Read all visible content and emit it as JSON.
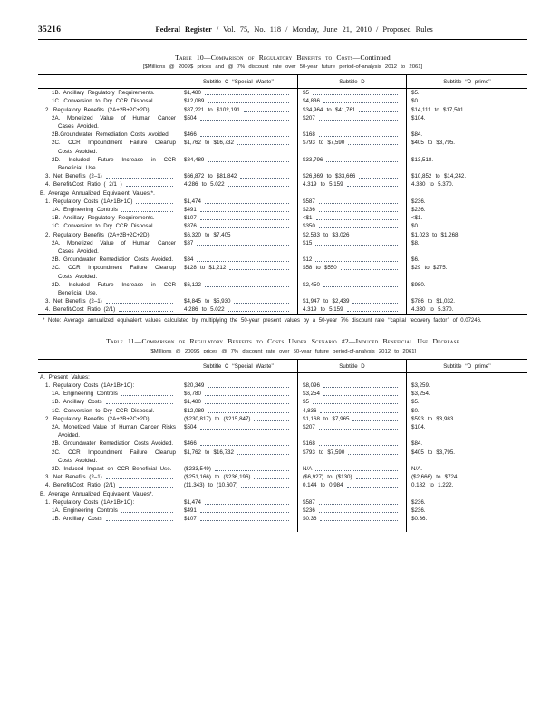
{
  "page": {
    "number": "35216",
    "journal": "Federal Register",
    "header_rest": "/ Vol. 75, No. 118 / Monday, June 21, 2010 / Proposed Rules"
  },
  "table10": {
    "title_main": "Table 10—Comparison of Regulatory Benefits to Costs",
    "title_suffix": "—Continued",
    "subtitle": "[$Millions @ 2009$ prices and @ 7% discount rate over 50-year future period-of-analysis 2012 to 2061]",
    "columns": {
      "c": "Subtitle C ‘‘Special Waste’’",
      "d": "Subtitle D",
      "dp": "Subtitle ‘‘D prime’’"
    },
    "rows": [
      {
        "label": "1B. Ancillary Regulatory Re­quirements.",
        "indent": 2,
        "c": "$1,480",
        "d": "$5",
        "dp": "$5."
      },
      {
        "label": "1C. Conversion to Dry CCR Dis­posal.",
        "indent": 2,
        "c": "$12,089",
        "d": "$4,836",
        "dp": "$0."
      },
      {
        "label": "2. Regulatory Benefits (2A+2B+2C+2D):",
        "indent": 1,
        "c": "$87,221 to $102,191",
        "d": "$34,964 to $41,761",
        "dp": "$14,111 to $17,501."
      },
      {
        "label": "2A. Monetized Value of Human Cancer Cases Avoided.",
        "indent": 2,
        "c": "$504",
        "d": "$207",
        "dp": "$104."
      },
      {
        "label": "2B.Groundwater Remediation Costs Avoided.",
        "indent": 2,
        "c": "$466",
        "d": "$168",
        "dp": "$84."
      },
      {
        "label": "2C. CCR Impoundment Failure Cleanup Costs Avoided.",
        "indent": 2,
        "c": "$1,762 to $16,732",
        "d": "$793 to $7,590",
        "dp": "$405 to $3,795."
      },
      {
        "label": "2D. Included Future Increase in CCR Beneficial Use.",
        "indent": 2,
        "c": "$84,489",
        "d": "$33,796",
        "dp": "$13,518."
      },
      {
        "label": "3. Net Benefits (2–1)",
        "indent": 1,
        "leader": true,
        "c": "$66,872 to $81,842",
        "d": "$26,869 to $33,666",
        "dp": "$10,852 to $14,242."
      },
      {
        "label": "4. Benefit/Cost Ratio ( 2/1 )",
        "indent": 1,
        "leader": true,
        "c": "4.286 to 5.022",
        "d": "4.319 to 5.159",
        "dp": "4.330 to 5.370."
      },
      {
        "label": "B. Average Annualized Equivalent Val­ues:*.",
        "indent": 0,
        "c": "",
        "d": "",
        "dp": ""
      },
      {
        "label": "1. Regulatory Costs (1A+1B+1C)",
        "indent": 1,
        "leader": true,
        "c": "$1,474",
        "d": "$587",
        "dp": "$236."
      },
      {
        "label": "1A. Engineering Controls",
        "indent": 2,
        "leader": true,
        "c": "$491",
        "d": "$236",
        "dp": "$236."
      },
      {
        "label": "1B. Ancillary Regulatory Re­quirements.",
        "indent": 2,
        "c": "$107",
        "d": "<$1",
        "dp": "<$1."
      },
      {
        "label": "1C. Conversion to Dry CCR Dis­posal.",
        "indent": 2,
        "c": "$876",
        "d": "$350",
        "dp": "$0."
      },
      {
        "label": "2. Regulatory Benefits (2A+2B+2C+2D):",
        "indent": 1,
        "c": "$6,320 to $7,405",
        "d": "$2,533 to $3,026",
        "dp": "$1,023 to $1,268."
      },
      {
        "label": "2A. Monetized Value of Human Cancer Cases Avoided.",
        "indent": 2,
        "c": "$37",
        "d": "$15",
        "dp": "$8."
      },
      {
        "label": "2B. Groundwater Remediation Costs Avoided.",
        "indent": 2,
        "c": "$34",
        "d": "$12",
        "dp": "$6."
      },
      {
        "label": "2C. CCR Impoundment Failure Cleanup Costs Avoided.",
        "indent": 2,
        "c": "$128 to $1,212",
        "d": "$58 to $550",
        "dp": "$29 to $275."
      },
      {
        "label": "2D. Included Future Increase in CCR Beneficial Use.",
        "indent": 2,
        "c": "$6,122",
        "d": "$2,450",
        "dp": "$980."
      },
      {
        "label": "3. Net Benefits (2–1)",
        "indent": 1,
        "leader": true,
        "c": "$4,845 to $5,930",
        "d": "$1,947 to $2,439",
        "dp": "$786 to $1,032."
      },
      {
        "label": "4. Benefit/Cost Ratio (2/1)",
        "indent": 1,
        "leader": true,
        "c": "4.286 to 5.022",
        "d": "4.319 to 5.159",
        "dp": "4.330 to 5.370."
      }
    ],
    "footnote": "* Note: Average annualized equivalent values calculated by multiplying the 50-year present values by a 50-year 7% discount rate ‘‘capital recovery factor’’ of 0.07246."
  },
  "table11": {
    "title_main": "Table 11—Comparison of Regulatory Benefits to Costs Under Scenario #2—Induced Beneficial Use Decrease",
    "title_suffix": "",
    "subtitle": "[$Millions @ 2009$ prices @ 7% discount rate over 50-year future period-of-analysis 2012 to 2061]",
    "columns": {
      "c": "Subtitle C ‘‘Special Waste’’",
      "d": "Subtitle D",
      "dp": "Subtitle ‘‘D prime’’"
    },
    "rows": [
      {
        "label": "A. Present Values:",
        "indent": 0,
        "c": "",
        "d": "",
        "dp": ""
      },
      {
        "label": "1. Regulatory Costs (1A+1B+1C):",
        "indent": 1,
        "c": "$20,349",
        "d": "$8,096",
        "dp": "$3,259."
      },
      {
        "label": "1A. Engineering Controls",
        "indent": 2,
        "leader": true,
        "c": "$6,780",
        "d": "$3,254",
        "dp": "$3,254."
      },
      {
        "label": "1B. Ancillary Costs",
        "indent": 2,
        "leader": true,
        "c": "$1,480",
        "d": "$5",
        "dp": "$5."
      },
      {
        "label": "1C. Conversion to Dry CCR Dis­posal.",
        "indent": 2,
        "c": "$12,089",
        "d": "4,836",
        "dp": "$0."
      },
      {
        "label": "2. Regulatory Benefits (2A+2B+2C+2D):",
        "indent": 1,
        "c": "($230,817) to ($215,847)",
        "d": "$1,168 to $7,965",
        "dp": "$593 to $3,983."
      },
      {
        "label": "2A. Monetized Value of Human Cancer Risks Avoided.",
        "indent": 2,
        "c": "$504",
        "d": "$207",
        "dp": "$104."
      },
      {
        "label": "2B. Groundwater Remediation Costs Avoided.",
        "indent": 2,
        "c": "$466",
        "d": "$168",
        "dp": "$84."
      },
      {
        "label": "2C. CCR Impoundment Failure Cleanup Costs Avoided.",
        "indent": 2,
        "c": "$1,762 to $16,732",
        "d": "$793 to $7,590",
        "dp": "$405 to $3,795."
      },
      {
        "label": "2D. Induced Impact on CCR Beneficial Use.",
        "indent": 2,
        "c": "($233,549)",
        "d": "N/A",
        "dp": "N/A."
      },
      {
        "label": "3. Net Benefits (2–1)",
        "indent": 1,
        "leader": true,
        "c": "($251,166) to ($236,196)",
        "d": "($6,927) to ($130)",
        "dp": "($2,666) to $724."
      },
      {
        "label": "4. Benefit/Cost Ratio (2/1)",
        "indent": 1,
        "leader": true,
        "c": "(11.343) to (10.607)",
        "d": "0.144 to 0.984",
        "dp": "0.182 to 1.222."
      },
      {
        "label": "B. Average Annualized Equivalent Values*.",
        "indent": 0,
        "c": "",
        "d": "",
        "dp": ""
      },
      {
        "label": "1. Regulatory Costs (1A+1B+1C):",
        "indent": 1,
        "c": "$1,474",
        "d": "$587",
        "dp": "$236."
      },
      {
        "label": "1A. Engineering Controls",
        "indent": 2,
        "leader": true,
        "c": "$491",
        "d": "$236",
        "dp": "$236."
      },
      {
        "label": "1B. Ancillary Costs",
        "indent": 2,
        "leader": true,
        "c": "$107",
        "d": "$0.36",
        "dp": "$0.36."
      }
    ]
  }
}
